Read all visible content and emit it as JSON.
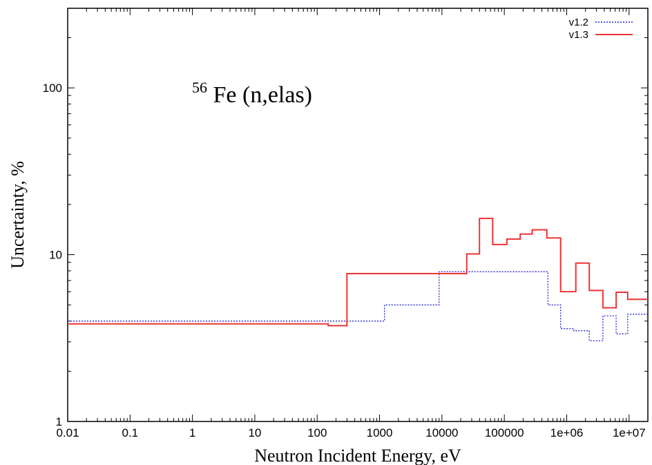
{
  "chart_data": {
    "type": "line",
    "step": true,
    "title": "",
    "xlabel": "Neutron Incident Energy, eV",
    "ylabel": "Uncertainty, %",
    "xscale": "log",
    "yscale": "log",
    "xlim": [
      0.01,
      20000000
    ],
    "ylim": [
      1,
      300
    ],
    "x_ticks": [
      0.01,
      0.1,
      1,
      10,
      100,
      1000,
      10000,
      100000,
      1000000,
      10000000
    ],
    "x_tick_labels": [
      "0.01",
      "0.1",
      "1",
      "10",
      "100",
      "1000",
      "10000",
      "100000",
      "1e+06",
      "1e+07"
    ],
    "y_ticks": [
      1,
      10,
      100
    ],
    "y_tick_labels": [
      "1",
      "10",
      "100"
    ],
    "legend": "top-right",
    "annotation": {
      "superscript": "56",
      "text": "Fe (n,elas)"
    },
    "series": [
      {
        "name": "v1.2",
        "color": "#2222dd",
        "style": "dotted",
        "points": [
          [
            0.01,
            4.0
          ],
          [
            1200,
            4.0
          ],
          [
            1200,
            5.0
          ],
          [
            9000,
            5.0
          ],
          [
            9000,
            7.9
          ],
          [
            500000,
            7.9
          ],
          [
            500000,
            5.0
          ],
          [
            800000,
            5.0
          ],
          [
            800000,
            3.6
          ],
          [
            1300000,
            3.6
          ],
          [
            1300000,
            3.5
          ],
          [
            2300000,
            3.5
          ],
          [
            2300000,
            3.05
          ],
          [
            3800000,
            3.05
          ],
          [
            3800000,
            4.3
          ],
          [
            6200000,
            4.3
          ],
          [
            6200000,
            3.35
          ],
          [
            9500000,
            3.35
          ],
          [
            9500000,
            4.4
          ],
          [
            20000000,
            4.4
          ]
        ]
      },
      {
        "name": "v1.3",
        "color": "#ee3333",
        "style": "solid",
        "points": [
          [
            0.01,
            3.85
          ],
          [
            150,
            3.85
          ],
          [
            150,
            3.75
          ],
          [
            300,
            3.75
          ],
          [
            300,
            7.7
          ],
          [
            25000,
            7.7
          ],
          [
            25000,
            10.1
          ],
          [
            40000,
            10.1
          ],
          [
            40000,
            16.5
          ],
          [
            65000,
            16.5
          ],
          [
            65000,
            11.5
          ],
          [
            110000,
            11.5
          ],
          [
            110000,
            12.4
          ],
          [
            180000,
            12.4
          ],
          [
            180000,
            13.3
          ],
          [
            280000,
            13.3
          ],
          [
            280000,
            14.1
          ],
          [
            480000,
            14.1
          ],
          [
            480000,
            12.6
          ],
          [
            800000,
            12.6
          ],
          [
            800000,
            6.0
          ],
          [
            1400000,
            6.0
          ],
          [
            1400000,
            8.9
          ],
          [
            2300000,
            8.9
          ],
          [
            2300000,
            6.1
          ],
          [
            3800000,
            6.1
          ],
          [
            3800000,
            4.8
          ],
          [
            6200000,
            4.8
          ],
          [
            6200000,
            5.95
          ],
          [
            9500000,
            5.95
          ],
          [
            9500000,
            5.4
          ],
          [
            20000000,
            5.4
          ]
        ]
      }
    ]
  }
}
